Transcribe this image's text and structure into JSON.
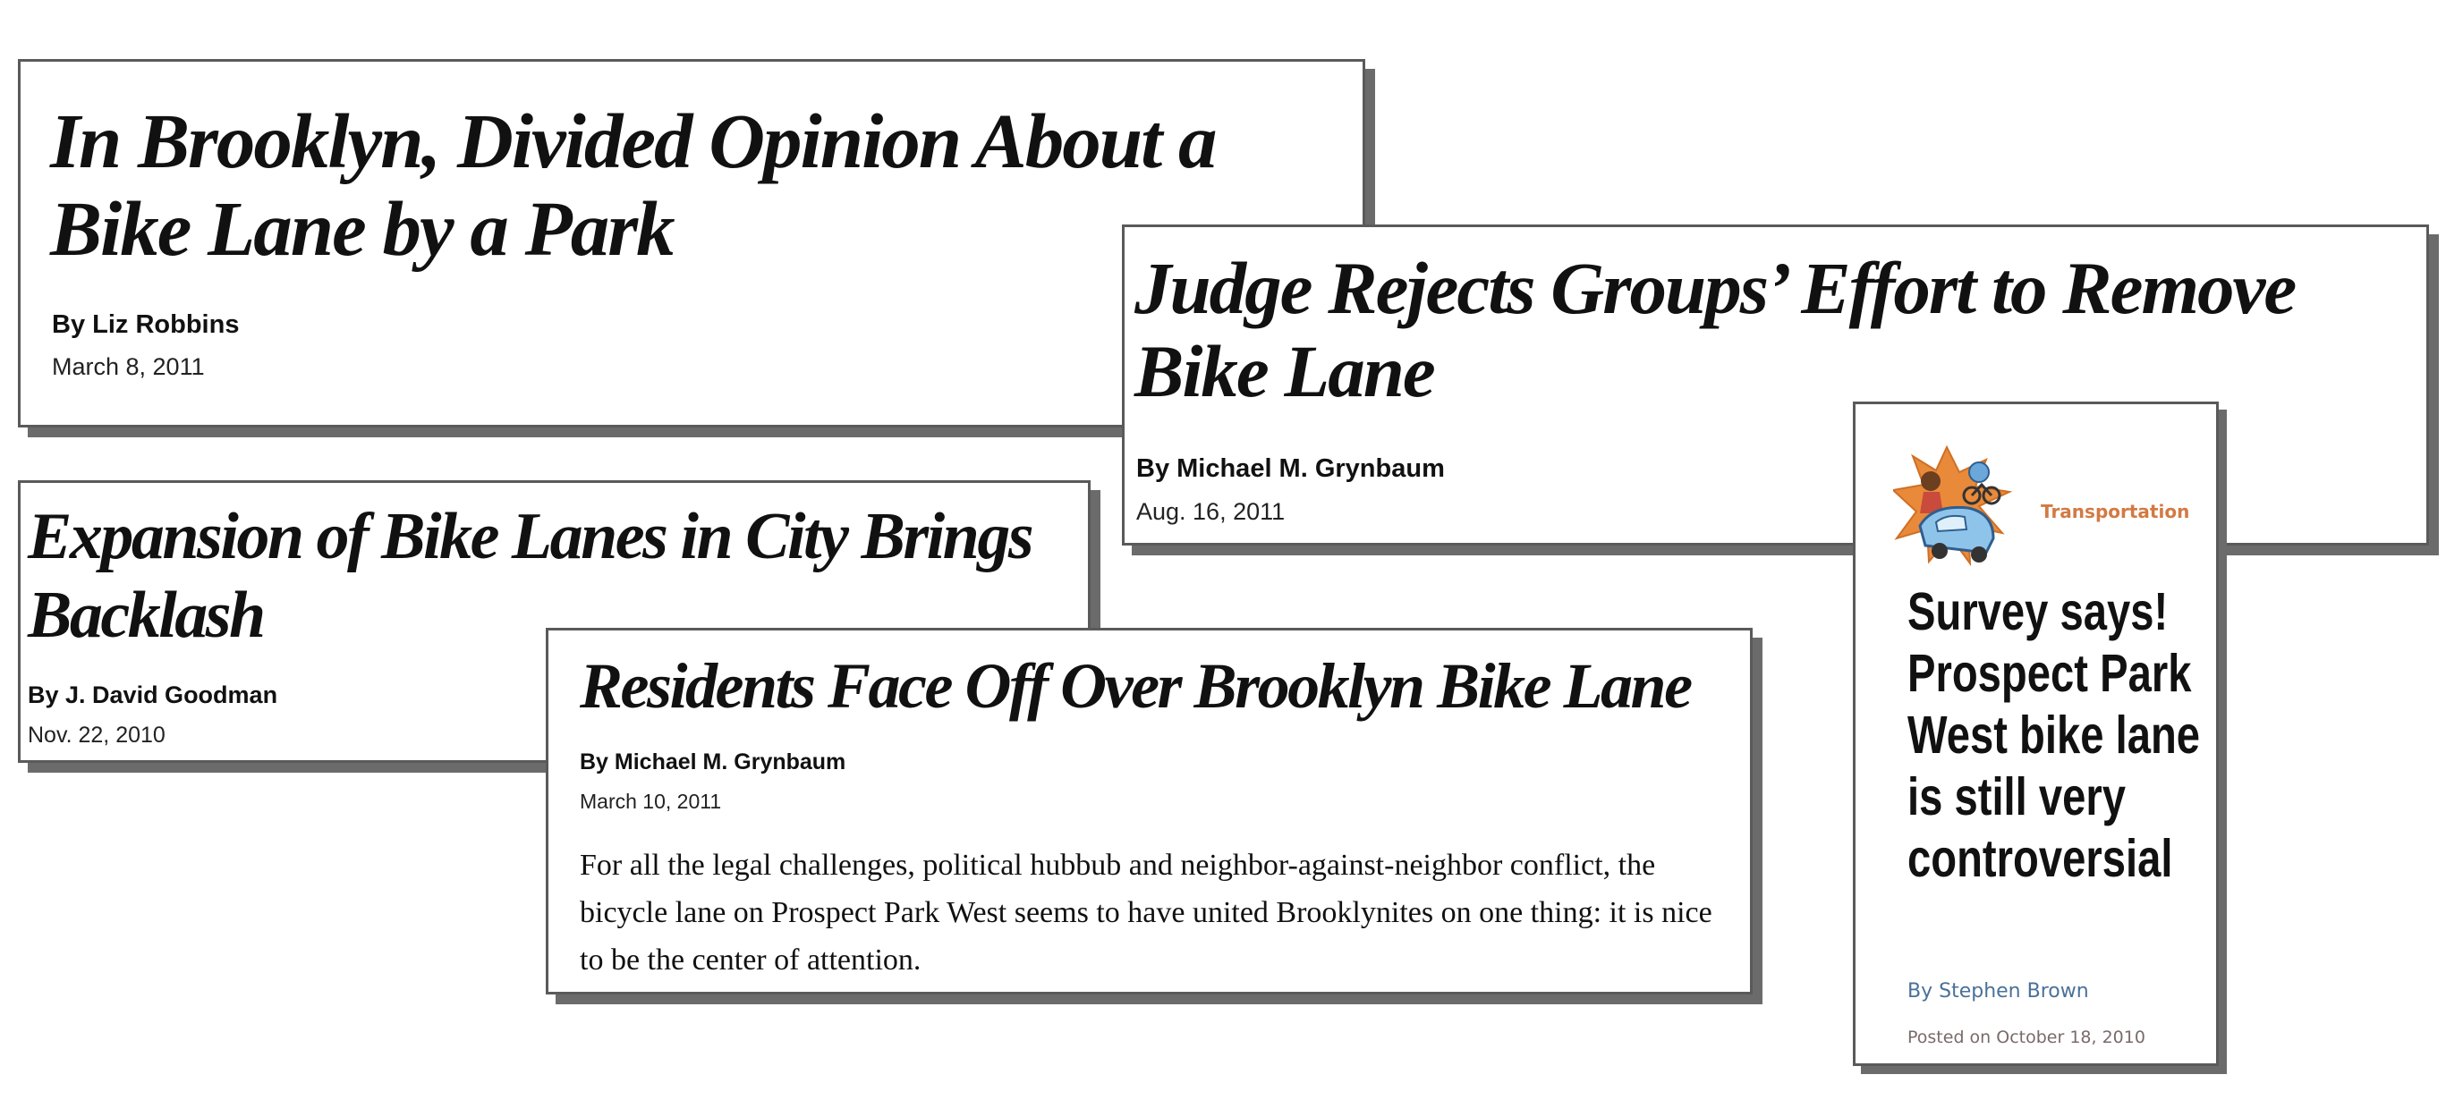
{
  "articles": [
    {
      "headline": "In Brooklyn, Divided Opinion About a Bike Lane by a Park",
      "byline": "By Liz Robbins",
      "date": "March 8, 2011"
    },
    {
      "headline": "Judge Rejects Groups’ Effort to Remove Bike Lane",
      "byline": "By Michael M. Grynbaum",
      "date": "Aug. 16, 2011"
    },
    {
      "headline": "Expansion of Bike Lanes in City Brings Backlash",
      "byline": "By J. David Goodman",
      "date": "Nov. 22, 2010"
    },
    {
      "headline": "Residents Face Off Over Brooklyn Bike Lane",
      "byline": "By Michael M. Grynbaum",
      "date": "March 10, 2011",
      "summary": "For all the legal challenges, political hubbub and neighbor-against-neighbor conflict, the bicycle lane on Prospect Park West seems to have united Brooklynites on one thing: it is nice to be the center of attention."
    }
  ],
  "blog_card": {
    "category": "Transportation",
    "headline": "Survey says! Prospect Park West bike lane is still very controversial",
    "byline": "By Stephen Brown",
    "posted": "Posted on October 18, 2010",
    "illustration_icon": "cyclists-and-car-collision-illustration",
    "category_color": "#d27a43",
    "byline_color": "#4a7198"
  }
}
